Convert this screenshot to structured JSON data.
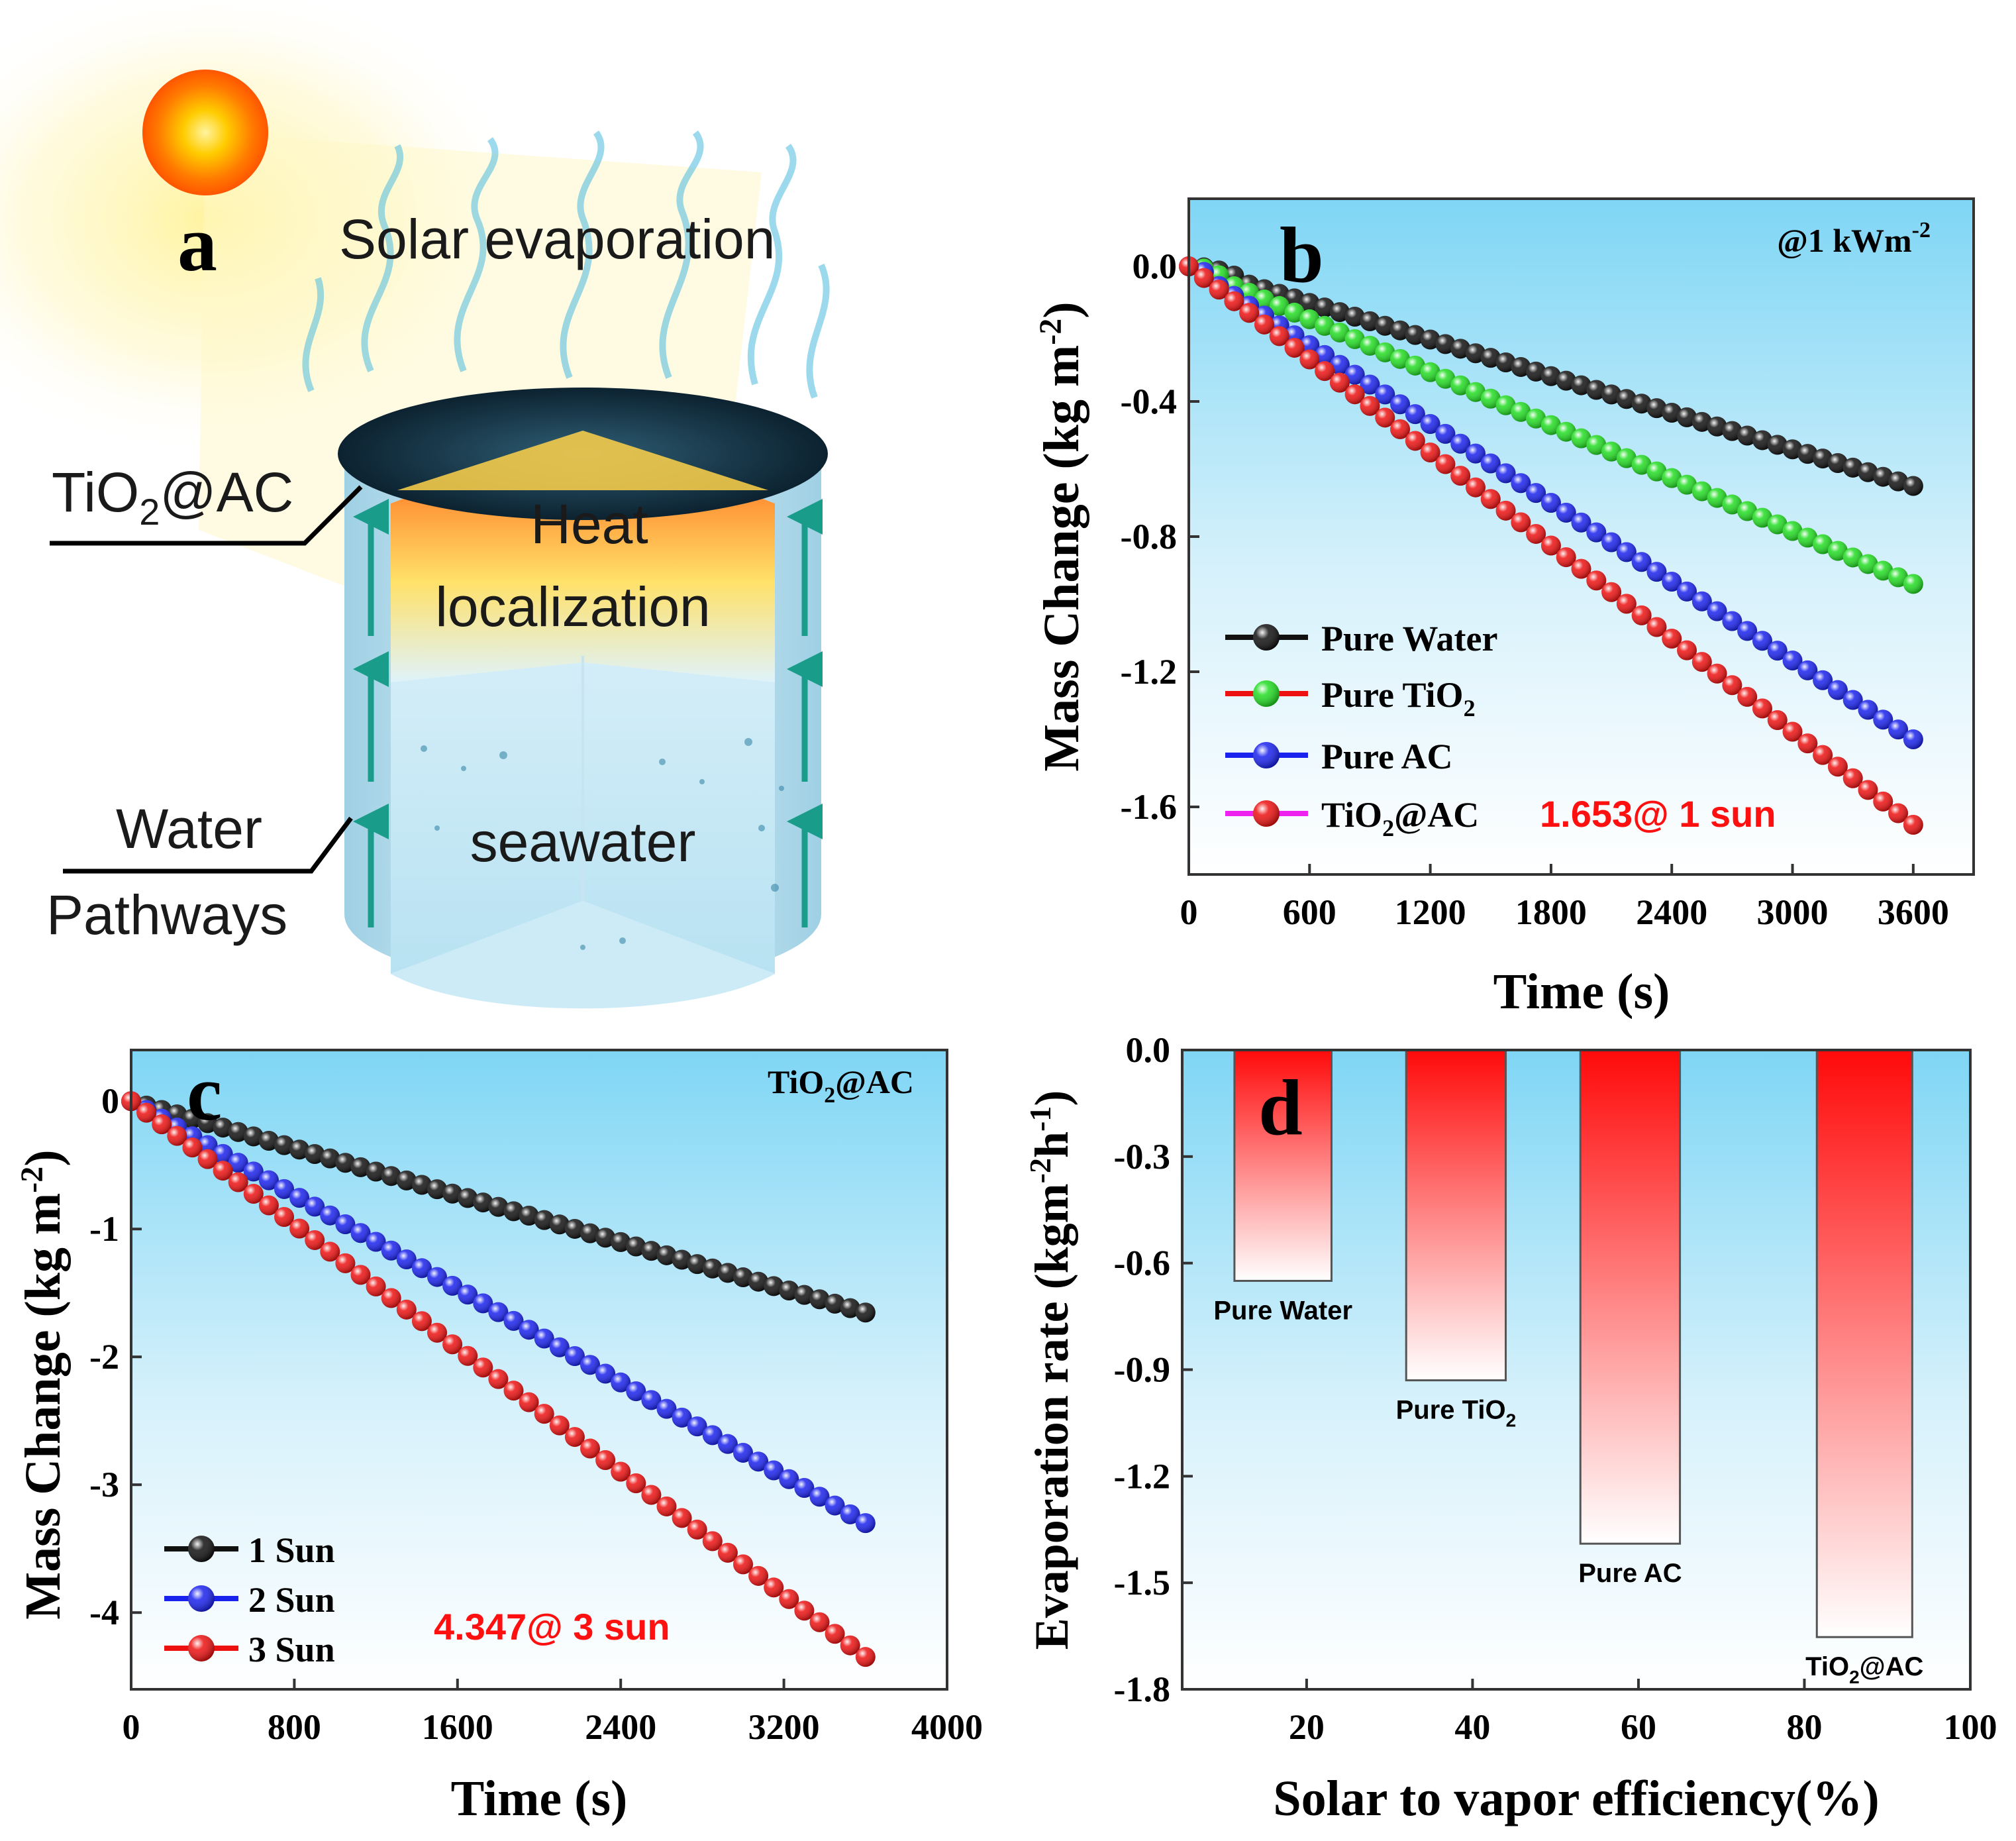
{
  "panel_a": {
    "panel_label": "a",
    "title": "Solar evaporation",
    "label_tio2_ac": "TiO",
    "label_tio2_ac_sub": "2",
    "label_tio2_ac_tail": "@AC",
    "label_heat_1": "Heat",
    "label_heat_2": "localization",
    "label_water_1": "Water",
    "label_water_2": "Pathways",
    "label_seawater": "seawater"
  },
  "chart_data": [
    {
      "panel": "b",
      "type": "line",
      "panel_label": "b",
      "corner_note": "@1 kWm",
      "corner_note_sup": "-2",
      "xlabel": "Time (s)",
      "ylabel": "Mass Change (kg m",
      "ylabel_sup": "-2",
      "ylabel_tail": ")",
      "xlim": [
        0,
        3900
      ],
      "ylim": [
        -1.8,
        0.2
      ],
      "xticks": [
        0,
        600,
        1200,
        1800,
        2400,
        3000,
        3600
      ],
      "yticks": [
        0.0,
        -0.4,
        -0.8,
        -1.2,
        -1.6
      ],
      "ytick_labels": [
        "0.0",
        "-0.4",
        "-0.8",
        "-1.2",
        "-1.6"
      ],
      "xtick_labels": [
        "0",
        "600",
        "1200",
        "1800",
        "2400",
        "3000",
        "3600"
      ],
      "annotation": "1.653@ 1 sun",
      "x_range": [
        0,
        3600
      ],
      "point_count": 49,
      "series": [
        {
          "name": "Pure Water",
          "end_value": -0.65,
          "delay": 300,
          "color": "#111111"
        },
        {
          "name": "Pure TiO",
          "name_sub": "2",
          "end_value": -0.94,
          "delay": 200,
          "color": "#22dd22"
        },
        {
          "name": "Pure AC",
          "end_value": -1.4,
          "delay": 120,
          "color": "#1a22ee"
        },
        {
          "name": "TiO",
          "name_sub": "2",
          "name_tail": "@AC",
          "end_value": -1.653,
          "delay": 0,
          "color": "#ee1111"
        }
      ],
      "legend_line_colors": [
        "#111111",
        "#ee1111",
        "#1a22ee",
        "#ee22ee"
      ],
      "legend_ball_colors": [
        "#111111",
        "#22dd22",
        "#1a22ee",
        "#ee1111"
      ]
    },
    {
      "panel": "c",
      "type": "line",
      "panel_label": "c",
      "corner_note": "TiO",
      "corner_note_sub": "2",
      "corner_note_tail": "@AC",
      "xlabel": "Time (s)",
      "ylabel": "Mass Change (kg m",
      "ylabel_sup": "-2",
      "ylabel_tail": ")",
      "xlim": [
        0,
        4000
      ],
      "ylim": [
        -4.6,
        0.4
      ],
      "xticks": [
        0,
        800,
        1600,
        2400,
        3200,
        4000
      ],
      "yticks": [
        0,
        -1,
        -2,
        -3,
        -4
      ],
      "ytick_labels": [
        "0",
        "-1",
        "-2",
        "-3",
        "-4"
      ],
      "xtick_labels": [
        "0",
        "800",
        "1600",
        "2400",
        "3200",
        "4000"
      ],
      "annotation": "4.347@ 3 sun",
      "x_range": [
        0,
        3600
      ],
      "point_count": 49,
      "series": [
        {
          "name": "1 Sun",
          "end_value": -1.653,
          "color": "#111111"
        },
        {
          "name": "2 Sun",
          "end_value": -3.3,
          "color": "#1a22ee"
        },
        {
          "name": "3 Sun",
          "end_value": -4.347,
          "color": "#ee1111"
        }
      ]
    },
    {
      "panel": "d",
      "type": "bar",
      "panel_label": "d",
      "xlabel": "Solar to vapor efficiency(%)",
      "ylabel": "Evaporation rate (kgm",
      "ylabel_sup": "-2",
      "ylabel_mid": "h",
      "ylabel_sup2": "-1",
      "ylabel_tail": ")",
      "xlim": [
        5,
        100
      ],
      "ylim": [
        -1.8,
        0.0
      ],
      "xticks": [
        20,
        40,
        60,
        80,
        100
      ],
      "xtick_labels": [
        "20",
        "40",
        "60",
        "80",
        "100"
      ],
      "yticks": [
        0.0,
        -0.3,
        -0.6,
        -0.9,
        -1.2,
        -1.5,
        -1.8
      ],
      "ytick_labels": [
        "0.0",
        "-0.3",
        "-0.6",
        "-0.9",
        "-1.2",
        "-1.5",
        "-1.8"
      ],
      "bars": [
        {
          "label": "Pure Water",
          "x_start": 11.3,
          "x_end": 23.0,
          "value": -0.65
        },
        {
          "label": "Pure TiO",
          "label_sub": "2",
          "x_start": 32.0,
          "x_end": 44.0,
          "value": -0.93
        },
        {
          "label": "Pure AC",
          "x_start": 53.0,
          "x_end": 65.0,
          "value": -1.39
        },
        {
          "label": "TiO",
          "label_sub": "2",
          "label_tail": "@AC",
          "x_start": 81.5,
          "x_end": 93.0,
          "value": -1.653
        }
      ],
      "bar_color": "#ff1111"
    }
  ]
}
